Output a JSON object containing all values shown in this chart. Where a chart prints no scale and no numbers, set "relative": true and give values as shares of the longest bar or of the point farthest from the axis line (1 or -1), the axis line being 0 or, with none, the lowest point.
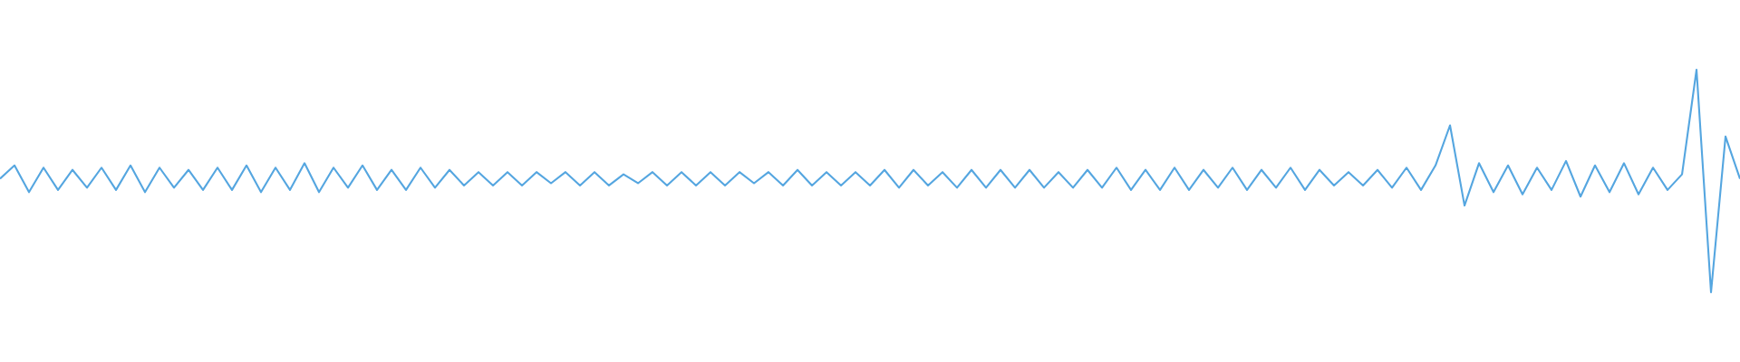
{
  "chart_data": {
    "type": "line",
    "relative": true,
    "color": "#55a6e0",
    "categories": [
      null,
      null,
      null,
      null,
      null,
      null,
      null,
      null,
      null,
      null,
      null,
      null,
      null,
      null,
      null,
      null,
      null,
      null,
      null,
      null,
      null,
      null,
      null,
      null,
      null,
      null,
      null,
      null,
      null,
      null,
      null,
      null,
      null,
      null,
      null,
      null,
      null,
      null,
      null,
      null,
      null,
      null,
      null,
      null,
      null,
      null,
      null,
      null,
      null,
      null,
      null,
      null,
      null,
      null,
      null,
      null,
      null,
      null,
      null,
      null,
      null,
      null,
      null,
      null,
      null,
      null,
      null,
      null,
      null,
      null,
      null,
      null,
      null,
      null,
      null,
      null,
      null,
      null,
      null,
      null,
      null,
      null,
      null,
      null,
      null,
      null,
      null,
      null,
      null,
      null,
      null,
      null,
      null,
      null,
      null,
      null,
      null,
      null,
      null,
      null,
      null,
      null,
      null,
      null,
      null,
      null,
      null,
      null,
      null,
      null,
      null,
      null,
      null,
      null,
      null,
      null,
      null,
      null,
      null,
      null,
      null
    ],
    "values": [
      0.51,
      0.57,
      0.45,
      0.56,
      0.46,
      0.55,
      0.47,
      0.56,
      0.46,
      0.57,
      0.45,
      0.56,
      0.47,
      0.55,
      0.46,
      0.56,
      0.46,
      0.57,
      0.45,
      0.56,
      0.46,
      0.58,
      0.45,
      0.56,
      0.47,
      0.57,
      0.46,
      0.55,
      0.46,
      0.56,
      0.47,
      0.55,
      0.48,
      0.54,
      0.48,
      0.54,
      0.48,
      0.54,
      0.49,
      0.54,
      0.48,
      0.54,
      0.48,
      0.53,
      0.49,
      0.54,
      0.48,
      0.54,
      0.48,
      0.54,
      0.48,
      0.54,
      0.49,
      0.54,
      0.48,
      0.55,
      0.48,
      0.54,
      0.48,
      0.54,
      0.48,
      0.55,
      0.47,
      0.55,
      0.48,
      0.54,
      0.47,
      0.55,
      0.47,
      0.55,
      0.47,
      0.55,
      0.47,
      0.54,
      0.47,
      0.55,
      0.47,
      0.56,
      0.46,
      0.55,
      0.46,
      0.56,
      0.46,
      0.55,
      0.47,
      0.56,
      0.46,
      0.55,
      0.47,
      0.56,
      0.46,
      0.55,
      0.48,
      0.54,
      0.48,
      0.55,
      0.47,
      0.56,
      0.46,
      0.57,
      0.75,
      0.39,
      0.58,
      0.45,
      0.57,
      0.44,
      0.56,
      0.46,
      0.59,
      0.43,
      0.57,
      0.45,
      0.58,
      0.44,
      0.56,
      0.46,
      0.53,
      1.0,
      0.0,
      0.7,
      0.51
    ]
  }
}
